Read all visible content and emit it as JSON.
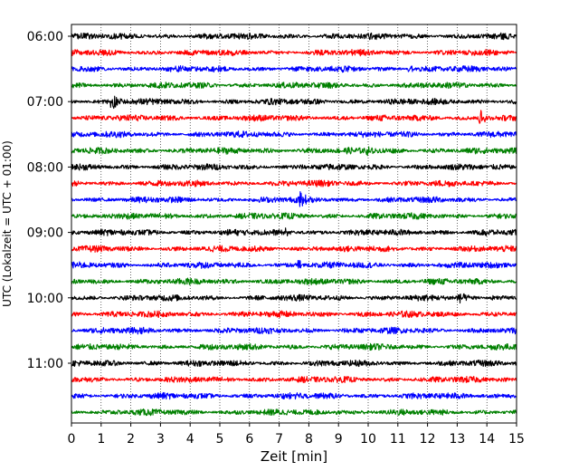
{
  "chart_data": {
    "type": "line",
    "title": "",
    "xlabel": "Zeit  [min]",
    "ylabel": "UTC (Lokalzeit = UTC + 01:00)",
    "xlim": [
      0,
      15
    ],
    "x_ticks": [
      "0",
      "1",
      "2",
      "3",
      "4",
      "5",
      "6",
      "7",
      "8",
      "9",
      "10",
      "11",
      "12",
      "13",
      "14",
      "15"
    ],
    "y_tick_labels": [
      "06:00",
      "07:00",
      "08:00",
      "09:00",
      "10:00",
      "11:00"
    ],
    "y_tick_trace_index": [
      0,
      4,
      8,
      12,
      16,
      20
    ],
    "trace_start_times": [
      "06:00",
      "06:15",
      "06:30",
      "06:45",
      "07:00",
      "07:15",
      "07:30",
      "07:45",
      "08:00",
      "08:15",
      "08:30",
      "08:45",
      "09:00",
      "09:15",
      "09:30",
      "09:45",
      "10:00",
      "10:15",
      "10:30",
      "10:45",
      "11:00",
      "11:15",
      "11:30",
      "11:45"
    ],
    "trace_minutes": 15,
    "color_cycle": [
      "#000000",
      "#ff0000",
      "#0000ff",
      "#008000"
    ],
    "grid": "vertical dotted",
    "events": [
      {
        "trace": 4,
        "minute": 1.4,
        "amplitude": 1.0
      },
      {
        "trace": 5,
        "minute": 13.8,
        "amplitude": 0.9
      },
      {
        "trace": 10,
        "minute": 7.7,
        "amplitude": 0.8
      },
      {
        "trace": 2,
        "minute": 11.4,
        "amplitude": 0.4
      },
      {
        "trace": 7,
        "minute": 10.0,
        "amplitude": 0.35
      },
      {
        "trace": 12,
        "minute": 7.2,
        "amplitude": 0.35
      },
      {
        "trace": 12,
        "minute": 14.0,
        "amplitude": 0.3
      },
      {
        "trace": 13,
        "minute": 8.2,
        "amplitude": 0.35
      },
      {
        "trace": 14,
        "minute": 7.7,
        "amplitude": 0.4
      },
      {
        "trace": 16,
        "minute": 13.1,
        "amplitude": 0.4
      },
      {
        "trace": 16,
        "minute": 14.2,
        "amplitude": 0.3
      },
      {
        "trace": 18,
        "minute": 2.2,
        "amplitude": 0.35
      },
      {
        "trace": 22,
        "minute": 7.5,
        "amplitude": 0.45
      },
      {
        "trace": 22,
        "minute": 14.8,
        "amplitude": 0.35
      },
      {
        "trace": 23,
        "minute": 9.0,
        "amplitude": 0.3
      }
    ]
  }
}
